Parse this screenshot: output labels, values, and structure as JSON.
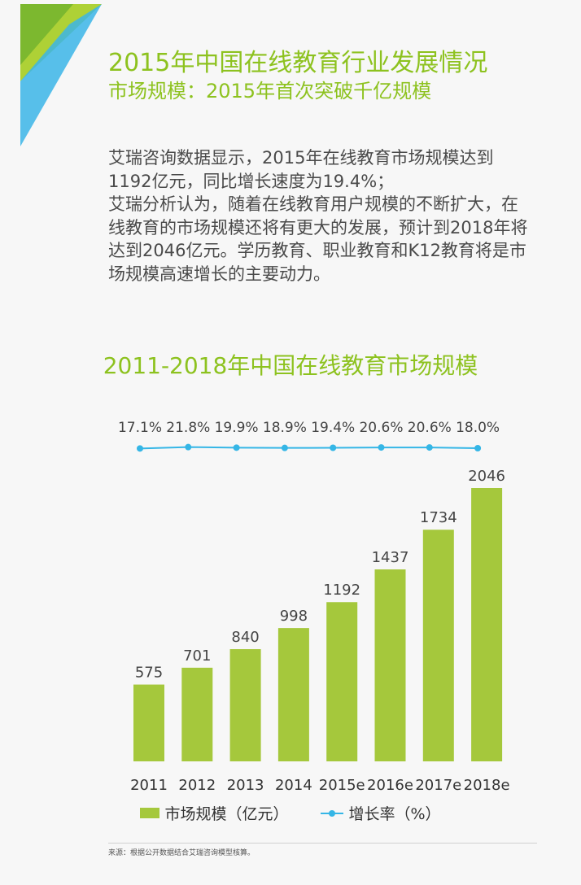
{
  "header": {
    "title": "2015年中国在线教育行业发展情况",
    "subtitle": "市场规模：2015年首次突破千亿规模"
  },
  "body": {
    "paragraph1": "艾瑞咨询数据显示，2015年在线教育市场规模达到1192亿元，同比增长速度为19.4%；",
    "paragraph2": "艾瑞分析认为，随着在线教育用户规模的不断扩大，在线教育的市场规模还将有更大的发展，预计到2018年将达到2046亿元。学历教育、职业教育和K12教育将是市场规模高速增长的主要动力。"
  },
  "chart_data": {
    "type": "bar",
    "title": "2011-2018年中国在线教育市场规模",
    "categories": [
      "2011",
      "2012",
      "2013",
      "2014",
      "2015e",
      "2016e",
      "2017e",
      "2018e"
    ],
    "series": [
      {
        "name": "市场规模（亿元）",
        "type": "bar",
        "values": [
          575,
          701,
          840,
          998,
          1192,
          1437,
          1734,
          2046
        ],
        "labels": [
          "575",
          "701",
          "840",
          "998",
          "1192",
          "1437",
          "1734",
          "2046"
        ]
      },
      {
        "name": "增长率（%）",
        "type": "line",
        "values": [
          17.1,
          21.8,
          19.9,
          18.9,
          19.4,
          20.6,
          20.6,
          18.0
        ],
        "labels": [
          "17.1%",
          "21.8%",
          "19.9%",
          "18.9%",
          "19.4%",
          "20.6%",
          "20.6%",
          "18.0%"
        ]
      }
    ],
    "ylim": [
      0,
      2200
    ],
    "grid": false,
    "legend": "bottom-center",
    "colors": {
      "bar": "#a5c83c",
      "line": "#35b6e6"
    }
  },
  "footer": {
    "source": "来源：根据公开数据结合艾瑞咨询模型核算。"
  },
  "colors": {
    "accent": "#8dc21f",
    "corner_green": "#8dc21f",
    "corner_blue": "#3bb5e8"
  }
}
